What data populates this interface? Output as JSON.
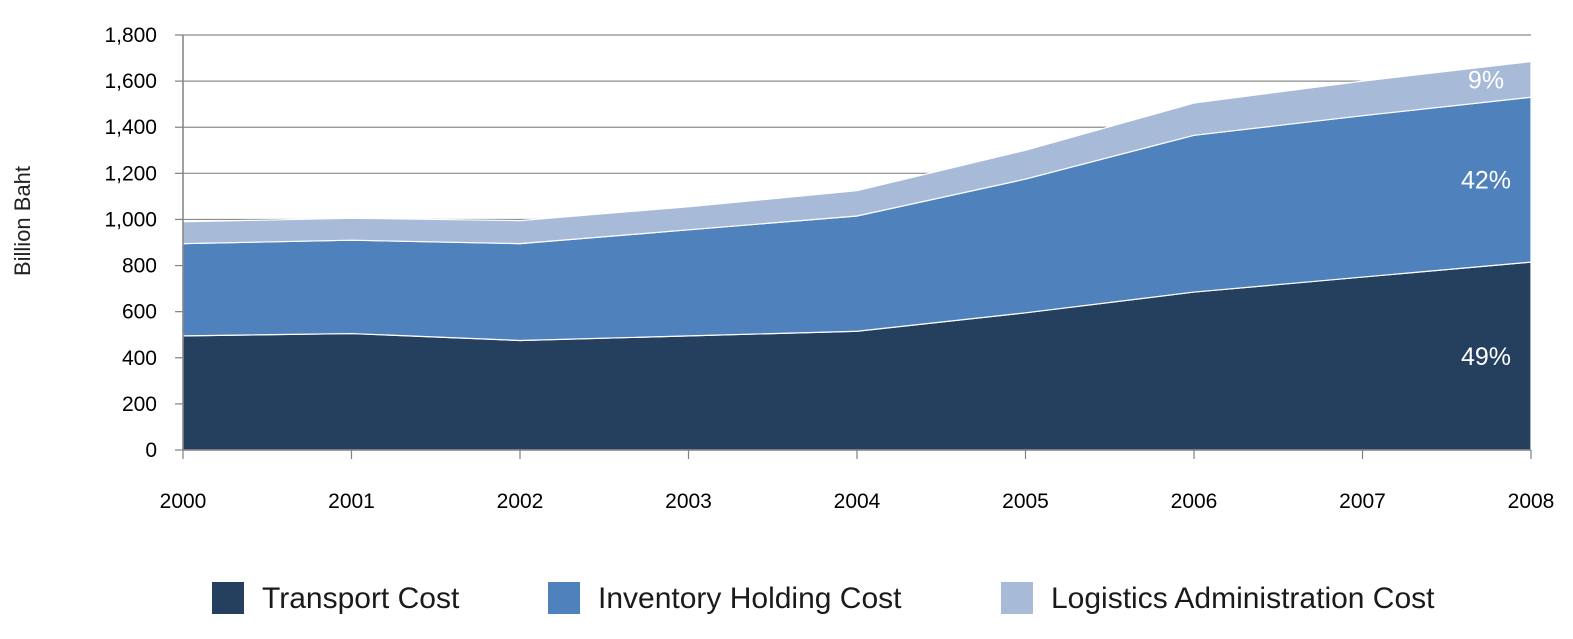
{
  "chart_data": {
    "type": "area",
    "stacked": true,
    "ylabel": "Billion Baht",
    "xlabel": "",
    "ylim": [
      0,
      1800
    ],
    "yticks": [
      0,
      200,
      400,
      600,
      800,
      1000,
      1200,
      1400,
      1600,
      1800
    ],
    "ytick_labels": [
      "0",
      "200",
      "400",
      "600",
      "800",
      "1,000",
      "1,200",
      "1,400",
      "1,600",
      "1,800"
    ],
    "x": [
      "2000",
      "2001",
      "2002",
      "2003",
      "2004",
      "2005",
      "2006",
      "2007",
      "2008"
    ],
    "grid": "horizontal",
    "legend_position": "bottom",
    "series": [
      {
        "name": "Transport Cost",
        "color": "#253f5f",
        "values": [
          495,
          505,
          475,
          495,
          515,
          595,
          685,
          750,
          815
        ],
        "annotation": "49%"
      },
      {
        "name": "Inventory Holding Cost",
        "color": "#4f81bd",
        "values": [
          400,
          405,
          420,
          460,
          500,
          580,
          680,
          700,
          715
        ],
        "annotation": "42%"
      },
      {
        "name": "Logistics Administration Cost",
        "color": "#a7bad8",
        "values": [
          95,
          95,
          100,
          100,
          110,
          125,
          140,
          150,
          155
        ],
        "annotation": "9%"
      }
    ]
  }
}
